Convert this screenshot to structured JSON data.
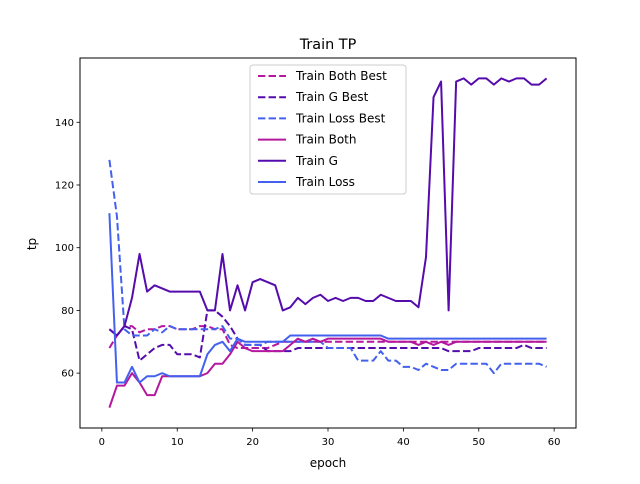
{
  "chart_data": {
    "type": "line",
    "title": "Train TP",
    "xlabel": "epoch",
    "ylabel": "tp",
    "xlim": [
      -2.9,
      62.9
    ],
    "ylim": [
      42.5,
      160.5
    ],
    "xticks": [
      0,
      10,
      20,
      30,
      40,
      50,
      60
    ],
    "yticks": [
      60,
      80,
      100,
      120,
      140
    ],
    "grid": false,
    "legend_position": "upper-center",
    "x": [
      1,
      2,
      3,
      4,
      5,
      6,
      7,
      8,
      9,
      10,
      11,
      12,
      13,
      14,
      15,
      16,
      17,
      18,
      19,
      20,
      21,
      22,
      23,
      24,
      25,
      26,
      27,
      28,
      29,
      30,
      31,
      32,
      33,
      34,
      35,
      36,
      37,
      38,
      39,
      40,
      41,
      42,
      43,
      44,
      45,
      46,
      47,
      48,
      49,
      50,
      51,
      52,
      53,
      54,
      55,
      56,
      57,
      58,
      59
    ],
    "series": [
      {
        "name": "Train Both Best",
        "color": "#b5179e",
        "dash": "dashed",
        "values": [
          68,
          72,
          75,
          75,
          73,
          74,
          74,
          75,
          75,
          74,
          74,
          74,
          75,
          75,
          74,
          74,
          69,
          68,
          68,
          68,
          68,
          68,
          69,
          70,
          70,
          70,
          70,
          70,
          70,
          70,
          70,
          70,
          70,
          70,
          70,
          70,
          70,
          70,
          70,
          70,
          70,
          70,
          70,
          70,
          70,
          70,
          70,
          70,
          70,
          70,
          70,
          70,
          70,
          70,
          70,
          70,
          70,
          70,
          70
        ]
      },
      {
        "name": "Train G Best",
        "color": "#560bad",
        "dash": "dashed",
        "values": [
          74,
          72,
          75,
          74,
          64,
          66,
          68,
          69,
          69,
          66,
          66,
          66,
          65,
          80,
          80,
          78,
          75,
          71,
          69,
          69,
          69,
          67,
          67,
          67,
          67,
          68,
          68,
          68,
          68,
          68,
          68,
          68,
          68,
          68,
          68,
          68,
          68,
          68,
          68,
          68,
          68,
          68,
          68,
          68,
          68,
          67,
          67,
          67,
          67,
          68,
          68,
          68,
          68,
          68,
          68,
          69,
          68,
          68,
          68
        ]
      },
      {
        "name": "Train Loss Best",
        "color": "#4361ee",
        "dash": "dashed",
        "values": [
          128,
          110,
          74,
          72,
          72,
          72,
          74,
          73,
          75,
          74,
          74,
          74,
          74,
          74,
          74,
          75,
          71,
          71,
          69,
          69,
          69,
          70,
          70,
          70,
          70,
          70,
          70,
          70,
          70,
          68,
          68,
          68,
          68,
          64,
          64,
          64,
          67,
          64,
          64,
          62,
          62,
          61,
          63,
          62,
          61,
          61,
          63,
          63,
          63,
          63,
          63,
          60,
          63,
          63,
          63,
          63,
          63,
          63,
          62
        ]
      },
      {
        "name": "Train Both",
        "color": "#b5179e",
        "dash": "solid",
        "values": [
          49,
          56,
          56,
          60,
          57,
          53,
          53,
          59,
          59,
          59,
          59,
          59,
          59,
          60,
          63,
          63,
          66,
          70,
          68,
          67,
          67,
          67,
          67,
          67,
          69,
          71,
          70,
          71,
          70,
          71,
          71,
          71,
          71,
          71,
          71,
          71,
          71,
          70,
          70,
          70,
          70,
          69,
          70,
          69,
          70,
          69,
          70,
          70,
          70,
          70,
          70,
          70,
          70,
          70,
          70,
          70,
          70,
          70,
          70
        ]
      },
      {
        "name": "Train G",
        "color": "#560bad",
        "dash": "solid",
        "values": [
          74,
          72,
          75,
          84,
          98,
          86,
          88,
          87,
          86,
          86,
          86,
          86,
          86,
          80,
          80,
          98,
          80,
          88,
          80,
          89,
          90,
          89,
          88,
          80,
          81,
          84,
          82,
          84,
          85,
          83,
          84,
          83,
          84,
          84,
          83,
          83,
          85,
          84,
          83,
          83,
          83,
          81,
          97,
          148,
          153,
          80,
          153,
          154,
          152,
          154,
          154,
          152,
          154,
          153,
          154,
          154,
          152,
          152,
          154
        ]
      },
      {
        "name": "Train Loss",
        "color": "#4361ee",
        "dash": "solid",
        "values": [
          111,
          57,
          57,
          62,
          57,
          59,
          59,
          60,
          59,
          59,
          59,
          59,
          59,
          66,
          69,
          70,
          67,
          71,
          70,
          70,
          70,
          70,
          70,
          70,
          72,
          72,
          72,
          72,
          72,
          72,
          72,
          72,
          72,
          72,
          72,
          72,
          72,
          71,
          71,
          71,
          71,
          71,
          71,
          71,
          71,
          71,
          71,
          71,
          71,
          71,
          71,
          71,
          71,
          71,
          71,
          71,
          71,
          71,
          71
        ]
      }
    ]
  }
}
